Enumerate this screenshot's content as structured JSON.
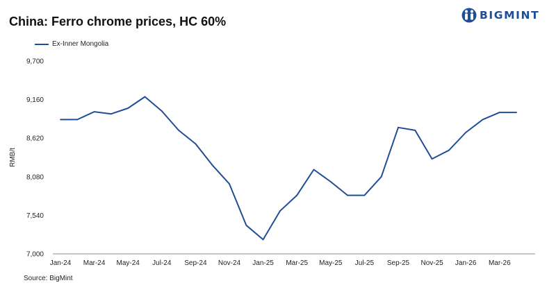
{
  "header": {
    "title": "China: Ferro chrome prices, HC 60%",
    "logo_text": "BIGMINT",
    "logo_icon": "bigmint-people-icon",
    "brand_color": "#1f4e96"
  },
  "footer": {
    "source": "Source: BigMint"
  },
  "chart_data": {
    "type": "line",
    "title": "China: Ferro chrome prices, HC 60%",
    "ylabel": "RMB/t",
    "xlabel": "",
    "ylim": [
      7000,
      9700
    ],
    "yticks": [
      "7,000",
      "7,540",
      "8,080",
      "8,620",
      "9,160",
      "9,700"
    ],
    "ytick_values": [
      7000,
      7540,
      8080,
      8620,
      9160,
      9700
    ],
    "xtick_labels": [
      "Jan-24",
      "Mar-24",
      "May-24",
      "Jul-24",
      "Sep-24",
      "Nov-24",
      "Jan-25",
      "Mar-25",
      "May-25",
      "Jul-25",
      "Sep-25",
      "Nov-25",
      "Jan-26",
      "Mar-26"
    ],
    "grid": false,
    "legend_position": "top-left",
    "x": [
      "Jan-24",
      "Feb-24",
      "Mar-24",
      "Apr-24",
      "May-24",
      "Jun-24",
      "Jul-24",
      "Aug-24",
      "Sep-24",
      "Oct-24",
      "Nov-24",
      "Dec-24",
      "Jan-25",
      "Feb-25",
      "Mar-25",
      "Apr-25",
      "May-25",
      "Jun-25",
      "Jul-25",
      "Aug-25",
      "Sep-25",
      "Oct-25",
      "Nov-25",
      "Dec-25",
      "Jan-26",
      "Feb-26",
      "Mar-26",
      "Apr-26"
    ],
    "series": [
      {
        "name": "Ex-Inner Mongolia",
        "color": "#1f4e96",
        "values": [
          8880,
          8880,
          8990,
          8960,
          9040,
          9200,
          9000,
          8730,
          8540,
          8240,
          7980,
          7400,
          7200,
          7600,
          7820,
          8180,
          8010,
          7820,
          7820,
          8080,
          8770,
          8730,
          8330,
          8450,
          8700,
          8880,
          8980,
          8980
        ]
      }
    ]
  }
}
